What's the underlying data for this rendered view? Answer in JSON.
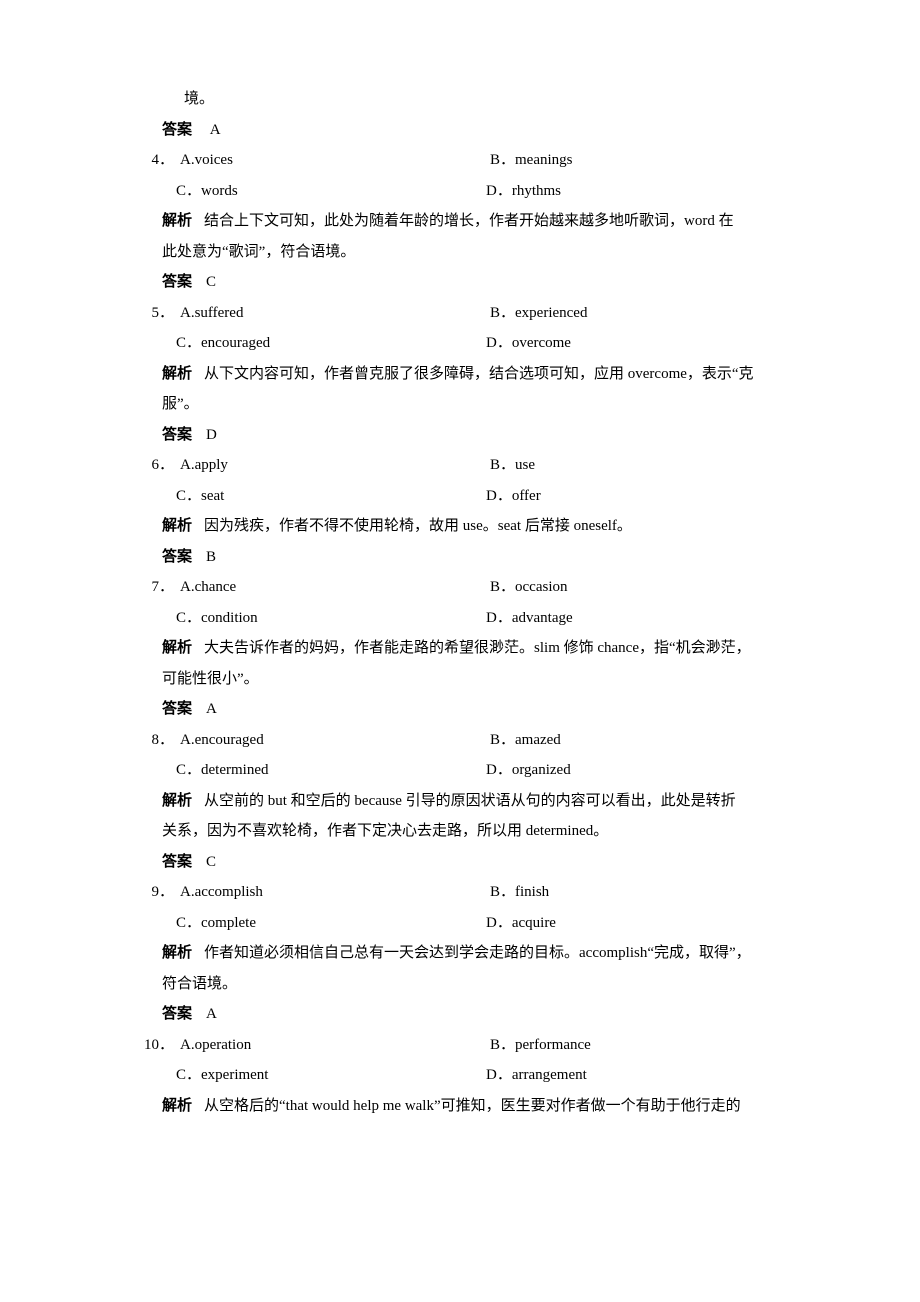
{
  "labels": {
    "explanation": "解析",
    "answer": "答案"
  },
  "remnantLine": "境。",
  "remnantAnswer": "A",
  "questions": [
    {
      "num": "4．",
      "optA": "A.voices",
      "optB": "B．meanings",
      "optC": "C．words",
      "optD": "D．rhythms",
      "expl1": "结合上下文可知，此处为随着年龄的增长，作者开始越来越多地听歌词，word 在",
      "expl2": "此处意为“歌词”，符合语境。",
      "answer": "C"
    },
    {
      "num": "5．",
      "optA": "A.suffered",
      "optB": "B．experienced",
      "optC": "C．encouraged",
      "optD": "D．overcome",
      "expl1": "从下文内容可知，作者曾克服了很多障碍，结合选项可知，应用 overcome，表示“克",
      "expl2": "服”。",
      "answer": "D"
    },
    {
      "num": "6．",
      "optA": "A.apply",
      "optB": "B．use",
      "optC": "C．seat",
      "optD": "D．offer",
      "expl1": "因为残疾，作者不得不使用轮椅，故用 use。seat 后常接 oneself。",
      "expl2": "",
      "answer": "B"
    },
    {
      "num": "7．",
      "optA": "A.chance",
      "optB": "B．occasion",
      "optC": "C．condition",
      "optD": "D．advantage",
      "expl1": "大夫告诉作者的妈妈，作者能走路的希望很渺茫。slim 修饰 chance，指“机会渺茫，",
      "expl2": "可能性很小”。",
      "answer": "A"
    },
    {
      "num": "8．",
      "optA": "A.encouraged",
      "optB": "B．amazed",
      "optC": "C．determined",
      "optD": "D．organized",
      "expl1": "从空前的 but 和空后的 because 引导的原因状语从句的内容可以看出，此处是转折",
      "expl2": "关系，因为不喜欢轮椅，作者下定决心去走路，所以用 determined。",
      "answer": "C"
    },
    {
      "num": "9．",
      "optA": "A.accomplish",
      "optB": "B．finish",
      "optC": "C．complete",
      "optD": "D．acquire",
      "expl1": "作者知道必须相信自己总有一天会达到学会走路的目标。accomplish“完成，取得”，",
      "expl2": "符合语境。",
      "answer": "A"
    },
    {
      "num": "10．",
      "optA": "A.operation",
      "optB": "B．performance",
      "optC": "C．experiment",
      "optD": "D．arrangement",
      "expl1": "从空格后的“that would help me walk”可推知，医生要对作者做一个有助于他行走的",
      "expl2": "",
      "answer": ""
    }
  ]
}
